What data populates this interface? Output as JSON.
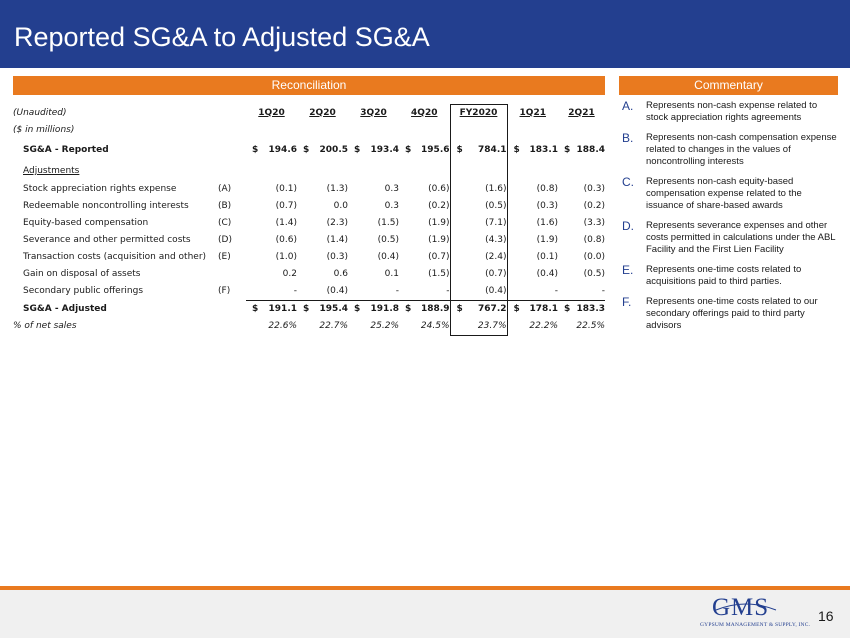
{
  "header": {
    "title": "Reported SG&A to Adjusted SG&A"
  },
  "sections": {
    "reconciliation": "Reconciliation",
    "commentary": "Commentary"
  },
  "table": {
    "unaudited": "(Unaudited)",
    "units": "($ in millions)",
    "columns": [
      "1Q20",
      "2Q20",
      "3Q20",
      "4Q20",
      "FY2020",
      "1Q21",
      "2Q21"
    ],
    "reported": {
      "label": "SG&A - Reported",
      "currency": "$",
      "values": [
        "194.6",
        "200.5",
        "193.4",
        "195.6",
        "784.1",
        "183.1",
        "188.4"
      ]
    },
    "adjustments_label": "Adjustments",
    "adjustments": [
      {
        "label": "Stock appreciation rights expense",
        "code": "(A)",
        "values": [
          "(0.1)",
          "(1.3)",
          "0.3",
          "(0.6)",
          "(1.6)",
          "(0.8)",
          "(0.3)"
        ]
      },
      {
        "label": "Redeemable noncontrolling interests",
        "code": "(B)",
        "values": [
          "(0.7)",
          "0.0",
          "0.3",
          "(0.2)",
          "(0.5)",
          "(0.3)",
          "(0.2)"
        ]
      },
      {
        "label": "Equity-based compensation",
        "code": "(C)",
        "values": [
          "(1.4)",
          "(2.3)",
          "(1.5)",
          "(1.9)",
          "(7.1)",
          "(1.6)",
          "(3.3)"
        ]
      },
      {
        "label": "Severance and other permitted costs",
        "code": "(D)",
        "values": [
          "(0.6)",
          "(1.4)",
          "(0.5)",
          "(1.9)",
          "(4.3)",
          "(1.9)",
          "(0.8)"
        ]
      },
      {
        "label": "Transaction costs (acquisition and other)",
        "code": "(E)",
        "values": [
          "(1.0)",
          "(0.3)",
          "(0.4)",
          "(0.7)",
          "(2.4)",
          "(0.1)",
          "(0.0)"
        ]
      },
      {
        "label": "Gain on disposal of assets",
        "code": "",
        "values": [
          "0.2",
          "0.6",
          "0.1",
          "(1.5)",
          "(0.7)",
          "(0.4)",
          "(0.5)"
        ]
      },
      {
        "label": "Secondary public offerings",
        "code": "(F)",
        "values": [
          "-",
          "(0.4)",
          "-",
          "-",
          "(0.4)",
          "-",
          "-"
        ]
      }
    ],
    "adjusted": {
      "label": "SG&A - Adjusted",
      "currency": "$",
      "values": [
        "191.1",
        "195.4",
        "191.8",
        "188.9",
        "767.2",
        "178.1",
        "183.3"
      ]
    },
    "net_sales": {
      "label": "% of net sales",
      "values": [
        "22.6%",
        "22.7%",
        "25.2%",
        "24.5%",
        "23.7%",
        "22.2%",
        "22.5%"
      ]
    }
  },
  "commentary": [
    {
      "letter": "A.",
      "text": "Represents non-cash expense related to stock appreciation rights agreements"
    },
    {
      "letter": "B.",
      "text": "Represents non-cash compensation expense related to changes in the values of noncontrolling interests"
    },
    {
      "letter": "C.",
      "text": "Represents non-cash equity-based compensation expense related to the issuance of share-based awards"
    },
    {
      "letter": "D.",
      "text": "Represents severance expenses and other costs permitted in calculations under the ABL Facility and the First Lien Facility"
    },
    {
      "letter": "E.",
      "text": "Represents one-time costs related to acquisitions paid to third parties."
    },
    {
      "letter": "F.",
      "text": "Represents one-time costs related to our secondary offerings paid to third party advisors"
    }
  ],
  "footer": {
    "logo_text": "GMS",
    "logo_tagline": "GYPSUM MANAGEMENT & SUPPLY, INC.",
    "page_number": "16"
  },
  "colors": {
    "navy": "#233f8f",
    "orange": "#e97a1f",
    "footer_gray": "#f0f0f0"
  }
}
